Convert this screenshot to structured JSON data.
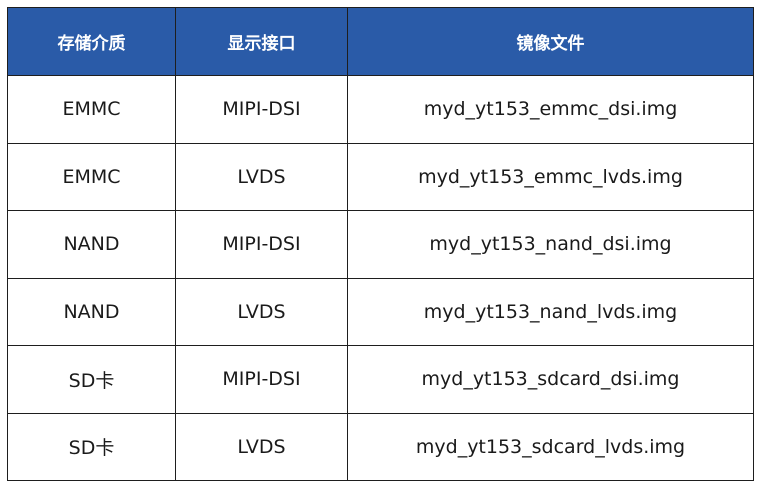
{
  "table": {
    "headers": [
      "存储介质",
      "显示接口",
      "镜像文件"
    ],
    "rows": [
      [
        "EMMC",
        "MIPI-DSI",
        "myd_yt153_emmc_dsi.img"
      ],
      [
        "EMMC",
        "LVDS",
        "myd_yt153_emmc_lvds.img"
      ],
      [
        "NAND",
        "MIPI-DSI",
        "myd_yt153_nand_dsi.img"
      ],
      [
        "NAND",
        "LVDS",
        "myd_yt153_nand_lvds.img"
      ],
      [
        "SD卡",
        "MIPI-DSI",
        "myd_yt153_sdcard_dsi.img"
      ],
      [
        "SD卡",
        "LVDS",
        "myd_yt153_sdcard_lvds.img"
      ]
    ],
    "header_color": "#2a5ba8"
  }
}
